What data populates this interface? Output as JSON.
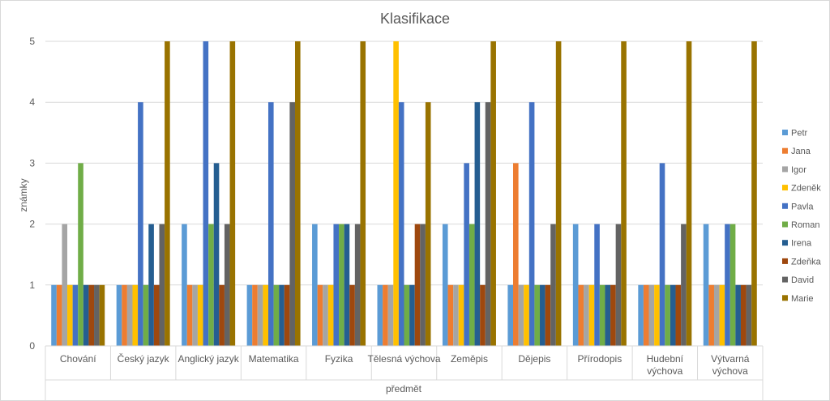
{
  "chart_data": {
    "type": "bar",
    "title": "Klasifikace",
    "xlabel": "předmět",
    "ylabel": "známky",
    "ylim": [
      0,
      5
    ],
    "yticks": [
      "0",
      "1",
      "2",
      "3",
      "4",
      "5"
    ],
    "grid": true,
    "legend_position": "right",
    "categories": [
      [
        "Chování"
      ],
      [
        "Český jazyk"
      ],
      [
        "Anglický jazyk"
      ],
      [
        "Matematika"
      ],
      [
        "Fyzika"
      ],
      [
        "Tělesná výchova"
      ],
      [
        "Zeměpis"
      ],
      [
        "Dějepis"
      ],
      [
        "Přírodopis"
      ],
      [
        "Hudební",
        "výchova"
      ],
      [
        "Výtvarná",
        "výchova"
      ]
    ],
    "series": [
      {
        "name": "Petr",
        "color": "#5B9BD5",
        "values": [
          1,
          1,
          2,
          1,
          2,
          1,
          2,
          1,
          2,
          1,
          2
        ]
      },
      {
        "name": "Jana",
        "color": "#ED7D31",
        "values": [
          1,
          1,
          1,
          1,
          1,
          1,
          1,
          3,
          1,
          1,
          1
        ]
      },
      {
        "name": "Igor",
        "color": "#A5A5A5",
        "values": [
          2,
          1,
          1,
          1,
          1,
          1,
          1,
          1,
          1,
          1,
          1
        ]
      },
      {
        "name": "Zdeněk",
        "color": "#FFC000",
        "values": [
          1,
          1,
          1,
          1,
          1,
          5,
          1,
          1,
          1,
          1,
          1
        ]
      },
      {
        "name": "Pavla",
        "color": "#4472C4",
        "values": [
          1,
          4,
          5,
          4,
          2,
          4,
          3,
          4,
          2,
          3,
          2
        ]
      },
      {
        "name": "Roman",
        "color": "#70AD47",
        "values": [
          3,
          1,
          2,
          1,
          2,
          1,
          2,
          1,
          1,
          1,
          2
        ]
      },
      {
        "name": "Irena",
        "color": "#255E91",
        "values": [
          1,
          2,
          3,
          1,
          2,
          1,
          4,
          1,
          1,
          1,
          1
        ]
      },
      {
        "name": "Zdeňka",
        "color": "#9E480E",
        "values": [
          1,
          1,
          1,
          1,
          1,
          2,
          1,
          1,
          1,
          1,
          1
        ]
      },
      {
        "name": "David",
        "color": "#636363",
        "values": [
          1,
          2,
          2,
          4,
          2,
          2,
          4,
          2,
          2,
          2,
          1
        ]
      },
      {
        "name": "Marie",
        "color": "#997300",
        "values": [
          1,
          5,
          5,
          5,
          5,
          4,
          5,
          5,
          5,
          5,
          5
        ]
      }
    ]
  }
}
